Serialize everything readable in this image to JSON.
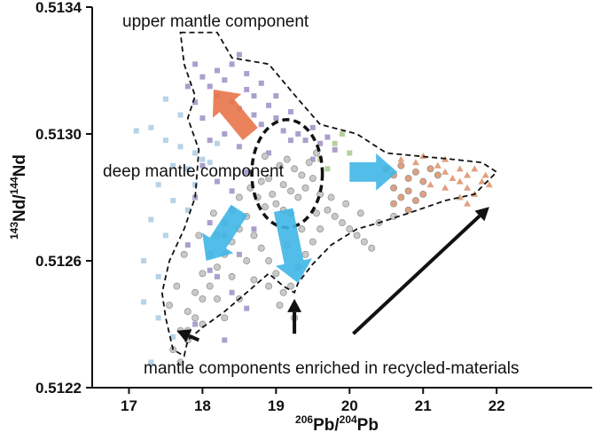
{
  "chart_data": {
    "type": "scatter",
    "xlabel": {
      "sup1": "206",
      "base1": "Pb/",
      "sup2": "204",
      "base2": "Pb"
    },
    "ylabel": {
      "sup1": "143",
      "base1": "Nd/",
      "sup2": "144",
      "base2": "Nd"
    },
    "xlim": [
      16.5,
      23.3
    ],
    "ylim": [
      0.5122,
      0.5134
    ],
    "x_ticks": [
      17,
      18,
      19,
      20,
      21,
      22
    ],
    "x_tick_labels": [
      "17",
      "18",
      "19",
      "20",
      "21",
      "22"
    ],
    "y_ticks": [
      0.5122,
      0.5126,
      0.513,
      0.5134
    ],
    "y_tick_labels": [
      "0.5122",
      "0.5126",
      "0.5130",
      "0.5134"
    ],
    "grid": false,
    "legend": null,
    "annotations": {
      "upper": "upper mantle component",
      "deep": "deep mantle component",
      "enriched": "mantle components enriched in recycled-materials"
    },
    "colors": {
      "purple_squares": "#9b8fc4",
      "lightblue_squares": "#a9cbe3",
      "green_squares": "#a9c98f",
      "gray_circles": "#c9c9c9",
      "tan_symbols": "#e0a07f",
      "blue_arrow": "#3fb6e5",
      "orange_arrow": "#e8744a"
    },
    "series": [
      {
        "marker": "square",
        "color": "#9b8fc4",
        "points": [
          [
            18.0,
            0.51318
          ],
          [
            18.1,
            0.51315
          ],
          [
            18.2,
            0.51312
          ],
          [
            18.3,
            0.51317
          ],
          [
            18.4,
            0.5131
          ],
          [
            18.5,
            0.51308
          ],
          [
            18.6,
            0.51314
          ],
          [
            18.7,
            0.51306
          ],
          [
            18.8,
            0.51303
          ],
          [
            18.9,
            0.51309
          ],
          [
            19.0,
            0.51305
          ],
          [
            19.1,
            0.51301
          ],
          [
            19.2,
            0.51307
          ],
          [
            19.3,
            0.513
          ],
          [
            19.4,
            0.51298
          ],
          [
            19.5,
            0.51302
          ],
          [
            19.6,
            0.51297
          ],
          [
            19.7,
            0.51299
          ],
          [
            19.8,
            0.51295
          ],
          [
            18.2,
            0.5132
          ],
          [
            18.4,
            0.51322
          ],
          [
            18.6,
            0.51319
          ],
          [
            18.8,
            0.51316
          ],
          [
            18.3,
            0.513
          ],
          [
            18.5,
            0.51296
          ],
          [
            18.1,
            0.51298
          ],
          [
            18.0,
            0.51305
          ],
          [
            17.9,
            0.5131
          ],
          [
            17.8,
            0.51315
          ],
          [
            17.9,
            0.51322
          ],
          [
            18.5,
            0.51325
          ],
          [
            18.7,
            0.51312
          ],
          [
            19.0,
            0.51312
          ],
          [
            19.2,
            0.51298
          ],
          [
            18.0,
            0.5129
          ],
          [
            18.2,
            0.51285
          ],
          [
            18.4,
            0.51282
          ],
          [
            18.6,
            0.51288
          ],
          [
            18.9,
            0.51294
          ],
          [
            19.5,
            0.51292
          ],
          [
            17.9,
            0.5128
          ],
          [
            18.1,
            0.51272
          ],
          [
            18.3,
            0.51268
          ],
          [
            18.5,
            0.51262
          ],
          [
            18.2,
            0.51255
          ],
          [
            17.8,
            0.51265
          ],
          [
            18.4,
            0.5125
          ],
          [
            18.6,
            0.51245
          ],
          [
            17.9,
            0.5124
          ],
          [
            18.3,
            0.51235
          ],
          [
            18.1,
            0.51257
          ],
          [
            18.7,
            0.5127
          ]
        ]
      },
      {
        "marker": "square",
        "color": "#a9cbe3",
        "points": [
          [
            17.1,
            0.51301
          ],
          [
            17.3,
            0.51302
          ],
          [
            17.5,
            0.51298
          ],
          [
            17.7,
            0.51296
          ],
          [
            17.9,
            0.51294
          ],
          [
            17.6,
            0.5129
          ],
          [
            17.8,
            0.51289
          ],
          [
            17.4,
            0.51284
          ],
          [
            17.6,
            0.51279
          ],
          [
            17.3,
            0.51273
          ],
          [
            17.5,
            0.51268
          ],
          [
            17.2,
            0.5126
          ],
          [
            17.4,
            0.51255
          ],
          [
            17.2,
            0.51247
          ],
          [
            17.4,
            0.51242
          ],
          [
            17.6,
            0.51236
          ],
          [
            17.3,
            0.51228
          ],
          [
            17.8,
            0.51276
          ],
          [
            17.9,
            0.51284
          ],
          [
            18.0,
            0.51292
          ],
          [
            18.2,
            0.51297
          ],
          [
            17.7,
            0.51306
          ],
          [
            18.1,
            0.51291
          ],
          [
            17.5,
            0.51311
          ]
        ]
      },
      {
        "marker": "square",
        "color": "#a9c98f",
        "points": [
          [
            19.6,
            0.51292
          ],
          [
            19.8,
            0.51297
          ],
          [
            19.9,
            0.513
          ],
          [
            19.7,
            0.51289
          ],
          [
            20.0,
            0.51294
          ]
        ]
      },
      {
        "marker": "circle",
        "color": "#c9c9c9",
        "points": [
          [
            19.05,
            0.5129
          ],
          [
            19.15,
            0.51292
          ],
          [
            19.25,
            0.51289
          ],
          [
            19.35,
            0.51287
          ],
          [
            19.1,
            0.51284
          ],
          [
            19.2,
            0.51282
          ],
          [
            19.3,
            0.5128
          ],
          [
            19.0,
            0.51278
          ],
          [
            19.1,
            0.51276
          ],
          [
            19.2,
            0.51275
          ],
          [
            18.9,
            0.51286
          ],
          [
            18.95,
            0.51281
          ],
          [
            19.4,
            0.51283
          ],
          [
            19.45,
            0.51291
          ],
          [
            19.5,
            0.51286
          ],
          [
            18.8,
            0.51285
          ],
          [
            18.85,
            0.51277
          ],
          [
            19.6,
            0.51281
          ],
          [
            19.7,
            0.51276
          ],
          [
            19.8,
            0.51274
          ],
          [
            19.9,
            0.51272
          ],
          [
            20.0,
            0.5127
          ],
          [
            20.1,
            0.51268
          ],
          [
            20.2,
            0.51266
          ],
          [
            20.3,
            0.51264
          ],
          [
            18.5,
            0.5128
          ],
          [
            18.4,
            0.51276
          ],
          [
            18.3,
            0.51272
          ],
          [
            18.2,
            0.51268
          ],
          [
            18.1,
            0.51262
          ],
          [
            18.0,
            0.51256
          ],
          [
            17.9,
            0.5125
          ],
          [
            17.8,
            0.51244
          ],
          [
            17.7,
            0.51238
          ],
          [
            17.6,
            0.51232
          ],
          [
            17.7,
            0.51228
          ],
          [
            17.8,
            0.51235
          ],
          [
            17.9,
            0.51242
          ],
          [
            18.0,
            0.51248
          ],
          [
            18.1,
            0.51252
          ],
          [
            18.2,
            0.51258
          ],
          [
            18.3,
            0.51262
          ],
          [
            18.4,
            0.51266
          ],
          [
            18.5,
            0.5127
          ],
          [
            18.6,
            0.51274
          ],
          [
            18.7,
            0.51268
          ],
          [
            18.8,
            0.51264
          ],
          [
            18.9,
            0.5126
          ],
          [
            19.0,
            0.51256
          ],
          [
            19.1,
            0.5125
          ],
          [
            19.2,
            0.51252
          ],
          [
            19.3,
            0.51258
          ],
          [
            19.4,
            0.51262
          ],
          [
            19.5,
            0.51266
          ],
          [
            19.6,
            0.5127
          ],
          [
            18.6,
            0.5126
          ],
          [
            18.4,
            0.51255
          ],
          [
            18.2,
            0.51248
          ],
          [
            18.0,
            0.5124
          ],
          [
            17.8,
            0.51238
          ],
          [
            18.7,
            0.51254
          ],
          [
            18.9,
            0.51252
          ],
          [
            19.05,
            0.51246
          ],
          [
            19.25,
            0.51242
          ],
          [
            18.5,
            0.51248
          ],
          [
            18.3,
            0.51242
          ],
          [
            19.15,
            0.51265
          ],
          [
            19.35,
            0.5127
          ],
          [
            19.55,
            0.51275
          ],
          [
            18.75,
            0.5128
          ],
          [
            18.65,
            0.51283
          ],
          [
            19.75,
            0.5128
          ],
          [
            19.95,
            0.51278
          ],
          [
            20.15,
            0.51275
          ],
          [
            20.4,
            0.51272
          ],
          [
            20.6,
            0.51274
          ],
          [
            18.15,
            0.51275
          ],
          [
            17.95,
            0.51268
          ],
          [
            17.75,
            0.51262
          ],
          [
            17.65,
            0.51252
          ],
          [
            17.55,
            0.51246
          ],
          [
            18.85,
            0.51293
          ],
          [
            19.55,
            0.51294
          ]
        ]
      },
      {
        "marker": "circle",
        "color": "#e0a07f",
        "points": [
          [
            20.5,
            0.51289
          ],
          [
            20.6,
            0.51287
          ],
          [
            20.7,
            0.5129
          ],
          [
            20.8,
            0.51286
          ],
          [
            20.9,
            0.51288
          ],
          [
            21.0,
            0.51285
          ],
          [
            21.1,
            0.51289
          ],
          [
            21.2,
            0.51287
          ],
          [
            20.6,
            0.51283
          ],
          [
            20.8,
            0.51282
          ],
          [
            21.0,
            0.51281
          ],
          [
            20.7,
            0.5128
          ],
          [
            20.9,
            0.51279
          ],
          [
            20.6,
            0.51278
          ],
          [
            20.8,
            0.51276
          ]
        ]
      },
      {
        "marker": "triangle",
        "color": "#e0a07f",
        "points": [
          [
            20.7,
            0.51292
          ],
          [
            20.9,
            0.51291
          ],
          [
            21.0,
            0.51293
          ],
          [
            21.2,
            0.5129
          ],
          [
            21.3,
            0.51288
          ],
          [
            21.4,
            0.51286
          ],
          [
            21.1,
            0.51284
          ],
          [
            21.3,
            0.51283
          ],
          [
            21.5,
            0.51285
          ],
          [
            21.5,
            0.51289
          ],
          [
            21.6,
            0.51287
          ],
          [
            21.6,
            0.51283
          ],
          [
            21.7,
            0.51281
          ],
          [
            21.8,
            0.51285
          ],
          [
            21.7,
            0.51289
          ],
          [
            21.5,
            0.5128
          ],
          [
            21.6,
            0.51278
          ],
          [
            21.85,
            0.51287
          ],
          [
            21.9,
            0.51284
          ],
          [
            21.3,
            0.51292
          ]
        ]
      }
    ],
    "outline": [
      [
        17.7,
        0.51332
      ],
      [
        18.2,
        0.51332
      ],
      [
        18.4,
        0.51324
      ],
      [
        18.9,
        0.51322
      ],
      [
        19.3,
        0.51311
      ],
      [
        19.6,
        0.51303
      ],
      [
        20.1,
        0.513
      ],
      [
        20.5,
        0.51294
      ],
      [
        21.4,
        0.51292
      ],
      [
        21.8,
        0.51291
      ],
      [
        22.0,
        0.51288
      ],
      [
        21.7,
        0.51281
      ],
      [
        21.3,
        0.51279
      ],
      [
        20.8,
        0.51275
      ],
      [
        20.4,
        0.51272
      ],
      [
        20.1,
        0.5127
      ],
      [
        19.75,
        0.51265
      ],
      [
        19.5,
        0.51259
      ],
      [
        19.3,
        0.51253
      ],
      [
        19.25,
        0.5125
      ],
      [
        19.1,
        0.51252
      ],
      [
        18.9,
        0.51256
      ],
      [
        18.6,
        0.5125
      ],
      [
        18.3,
        0.51244
      ],
      [
        18.0,
        0.51239
      ],
      [
        17.8,
        0.51235
      ],
      [
        17.75,
        0.5123
      ],
      [
        17.6,
        0.51232
      ],
      [
        17.5,
        0.51242
      ],
      [
        17.45,
        0.5125
      ],
      [
        17.55,
        0.5126
      ],
      [
        17.75,
        0.5127
      ],
      [
        17.9,
        0.5128
      ],
      [
        17.95,
        0.51295
      ],
      [
        17.8,
        0.51305
      ],
      [
        17.9,
        0.51312
      ],
      [
        17.75,
        0.51322
      ],
      [
        17.7,
        0.51332
      ]
    ],
    "deep_ellipse": {
      "cx": 19.15,
      "cy": 0.512875,
      "rx": 0.48,
      "ry": 0.00017
    },
    "blue_arrows": [
      {
        "from": [
          20.0,
          0.51288
        ],
        "to": [
          20.65,
          0.51288
        ]
      },
      {
        "from": [
          18.5,
          0.51276
        ],
        "to": [
          18.05,
          0.5126
        ]
      },
      {
        "from": [
          19.1,
          0.51276
        ],
        "to": [
          19.3,
          0.51253
        ]
      }
    ],
    "orange_arrow": {
      "from": [
        18.65,
        0.513
      ],
      "to": [
        18.15,
        0.51314
      ]
    },
    "black_arrows": [
      {
        "from": [
          17.95,
          0.51235
        ],
        "to": [
          17.65,
          0.51238
        ]
      },
      {
        "from": [
          19.25,
          0.51237
        ],
        "to": [
          19.25,
          0.51248
        ]
      },
      {
        "from": [
          20.05,
          0.51237
        ],
        "to": [
          21.9,
          0.51277
        ]
      }
    ]
  }
}
